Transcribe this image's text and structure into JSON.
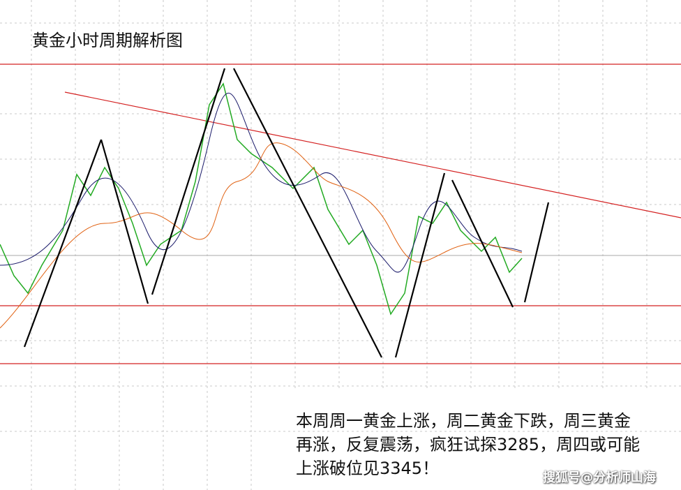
{
  "header": {
    "title": "黄金小时周期解析图"
  },
  "note": {
    "lines": [
      "本周周一黄金上涨，周二黄金下跌，周三黄金",
      "再涨，反复震荡，疯狂试探3285，周四或可能",
      "上涨破位见3345！"
    ]
  },
  "watermark": "搜狐号@分析师山海"
}
